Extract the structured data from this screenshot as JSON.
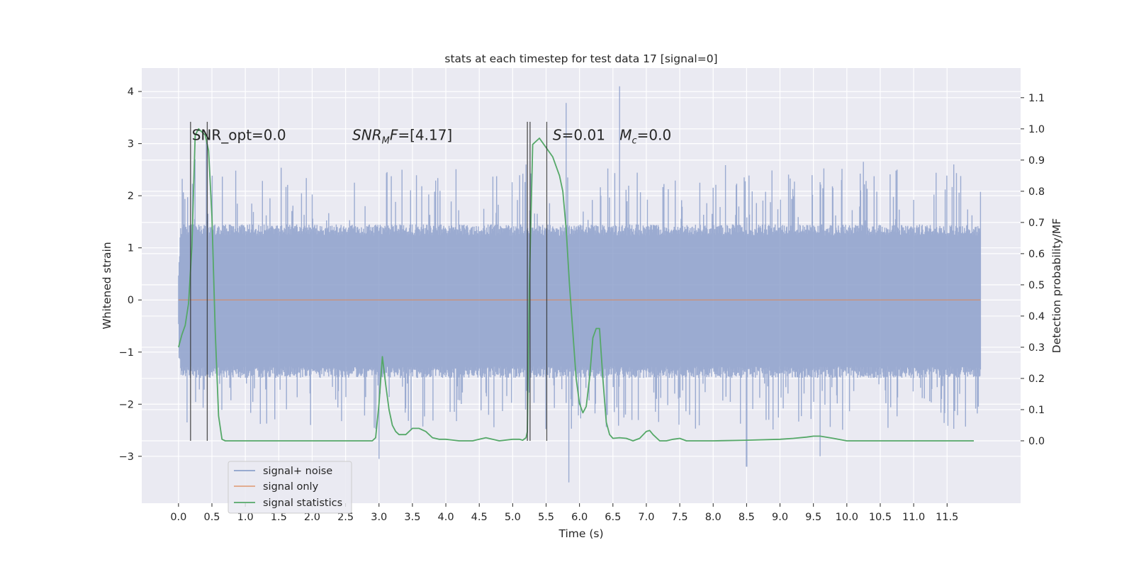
{
  "chart_data": {
    "type": "line",
    "title": "stats at each timestep for test data 17 [signal=0]",
    "xlabel": "Time (s)",
    "ylabel_left": "Whitened strain",
    "ylabel_right": "Detection probability/MF",
    "xlim": [
      -0.55,
      12.6
    ],
    "ylim_left": [
      -3.9,
      4.45
    ],
    "ylim_right": [
      -0.2,
      1.195
    ],
    "x_ticks": [
      "0.0",
      "0.5",
      "1.0",
      "1.5",
      "2.0",
      "2.5",
      "3.0",
      "3.5",
      "4.0",
      "4.5",
      "5.0",
      "5.5",
      "6.0",
      "6.5",
      "7.0",
      "7.5",
      "8.0",
      "8.5",
      "9.0",
      "9.5",
      "10.0",
      "10.5",
      "11.0",
      "11.5"
    ],
    "y_ticks_left": [
      "−3",
      "−2",
      "−1",
      "0",
      "1",
      "2",
      "3",
      "4"
    ],
    "y_ticks_right": [
      "0.0",
      "0.1",
      "0.2",
      "0.3",
      "0.4",
      "0.5",
      "0.6",
      "0.7",
      "0.8",
      "0.9",
      "1.0",
      "1.1"
    ],
    "grid": true,
    "legend_position": "lower-left",
    "series": [
      {
        "name": "signal+ noise",
        "axis": "left",
        "color": "#8da0cb",
        "x_range": [
          0.0,
          12.0
        ],
        "band_upper": 1.45,
        "band_lower": -1.5,
        "peak_max": 4.1,
        "peak_min": -3.55,
        "notable_spikes": [
          [
            0.25,
            2.7
          ],
          [
            0.42,
            3.05
          ],
          [
            3.0,
            -3.05
          ],
          [
            5.8,
            3.78
          ],
          [
            5.84,
            -3.5
          ],
          [
            6.6,
            4.1
          ],
          [
            8.5,
            -3.2
          ],
          [
            9.6,
            -3.0
          ],
          [
            10.25,
            2.65
          ],
          [
            10.75,
            2.5
          ],
          [
            11.6,
            2.6
          ]
        ]
      },
      {
        "name": "signal only",
        "axis": "left",
        "color": "#dd8452",
        "x": [
          0.0,
          12.0
        ],
        "y": [
          0.0,
          0.0
        ]
      },
      {
        "name": "signal statistics",
        "axis": "right",
        "color": "#55a868",
        "x": [
          0.0,
          0.05,
          0.1,
          0.15,
          0.2,
          0.25,
          0.3,
          0.35,
          0.4,
          0.45,
          0.5,
          0.55,
          0.6,
          0.65,
          0.7,
          1.0,
          1.5,
          2.0,
          2.5,
          2.9,
          2.95,
          3.0,
          3.05,
          3.1,
          3.15,
          3.2,
          3.25,
          3.3,
          3.4,
          3.5,
          3.6,
          3.7,
          3.8,
          3.9,
          4.0,
          4.2,
          4.4,
          4.5,
          4.6,
          4.8,
          5.0,
          5.1,
          5.15,
          5.2,
          5.22,
          5.25,
          5.3,
          5.35,
          5.4,
          5.5,
          5.6,
          5.65,
          5.7,
          5.75,
          5.8,
          5.85,
          5.9,
          5.95,
          6.0,
          6.05,
          6.1,
          6.15,
          6.2,
          6.25,
          6.3,
          6.35,
          6.4,
          6.45,
          6.5,
          6.6,
          6.7,
          6.8,
          6.9,
          7.0,
          7.05,
          7.1,
          7.2,
          7.3,
          7.4,
          7.5,
          7.6,
          7.8,
          8.0,
          8.5,
          9.0,
          9.2,
          9.4,
          9.5,
          9.6,
          9.8,
          10.0,
          11.0,
          11.5,
          11.9
        ],
        "y": [
          0.3,
          0.34,
          0.37,
          0.44,
          0.62,
          0.98,
          1.0,
          0.99,
          0.98,
          0.93,
          0.72,
          0.35,
          0.08,
          0.005,
          0.0,
          0.0,
          0.0,
          0.0,
          0.0,
          0.0,
          0.01,
          0.12,
          0.27,
          0.18,
          0.1,
          0.05,
          0.03,
          0.02,
          0.02,
          0.04,
          0.04,
          0.03,
          0.01,
          0.005,
          0.005,
          0.0,
          0.0,
          0.005,
          0.01,
          0.0,
          0.005,
          0.005,
          0.002,
          0.01,
          0.03,
          0.5,
          0.95,
          0.96,
          0.97,
          0.94,
          0.91,
          0.88,
          0.85,
          0.8,
          0.68,
          0.5,
          0.35,
          0.2,
          0.12,
          0.09,
          0.11,
          0.2,
          0.33,
          0.36,
          0.36,
          0.2,
          0.06,
          0.02,
          0.008,
          0.01,
          0.008,
          0.0,
          0.008,
          0.03,
          0.033,
          0.02,
          0.0,
          0.0,
          0.005,
          0.008,
          0.0,
          0.0,
          0.0,
          0.002,
          0.005,
          0.008,
          0.012,
          0.015,
          0.015,
          0.008,
          0.0,
          0.0,
          0.0,
          0.0
        ]
      }
    ],
    "vertical_lines": [
      0.18,
      0.43,
      5.22,
      5.26,
      5.51
    ],
    "annotations": [
      {
        "text": "SNR_opt=0.0",
        "x": 0.2,
        "y_right": 0.98
      },
      {
        "text": "SNR_MF=[4.17]",
        "x": 2.6,
        "y_right": 0.98
      },
      {
        "text": "S=0.01",
        "x": 5.6,
        "y_right": 0.98
      },
      {
        "text": "M_c=0.0",
        "x": 6.6,
        "y_right": 0.98
      }
    ]
  }
}
